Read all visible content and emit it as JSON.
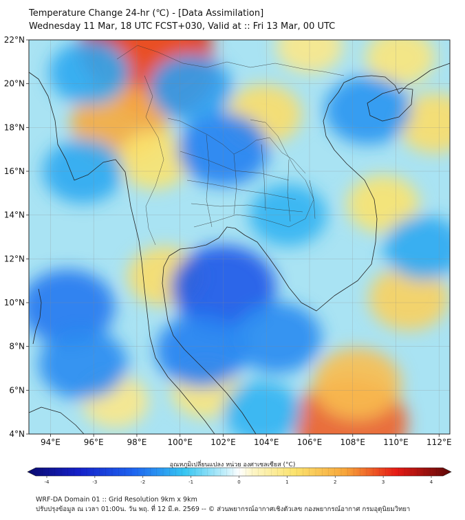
{
  "header": {
    "title": "Temperature Change 24-hr (℃) - [Data Assimilation]",
    "subtitle": "Wednesday 11 Mar, 18 UTC FCST+030, Valid at :: Fri 13 Mar, 00 UTC"
  },
  "map": {
    "lon_range": [
      93,
      112.5
    ],
    "lat_range": [
      4,
      22
    ],
    "lon_ticks": [
      "94°E",
      "96°E",
      "98°E",
      "100°E",
      "102°E",
      "104°E",
      "106°E",
      "108°E",
      "110°E",
      "112°E"
    ],
    "lat_ticks": [
      "4°N",
      "6°N",
      "8°N",
      "10°N",
      "12°N",
      "14°N",
      "16°N",
      "18°N",
      "20°N",
      "22°N"
    ],
    "gridlines": true
  },
  "colorbar": {
    "title": "อุณหภูมิเปลี่ยนแปลง หน่วย องศาเซลเซียส (°C)",
    "ticks": [
      "-4",
      "-3",
      "-2",
      "-1",
      "0",
      "1",
      "2",
      "3",
      "4"
    ],
    "range": [
      -4,
      4
    ]
  },
  "footer": {
    "line1": "WRF-DA Domain 01 :: Grid Resolution 9km x 9km",
    "line2": "ปรับปรุงข้อมูล ณ เวลา 01:00น. วัน พฤ. ที่ 12 มี.ค. 2569 -- © ส่วนพยากรณ์อากาศเชิงตัวเลข กองพยากรณ์อากาศ กรมอุตุนิยมวิทยา"
  },
  "chart_data": {
    "type": "heatmap",
    "title": "Temperature Change 24-hr (℃) - [Data Assimilation]",
    "xlim": [
      93,
      112.5
    ],
    "ylim": [
      4,
      22
    ],
    "value_range": [
      -4,
      4
    ],
    "features": [
      {
        "lon": 98.4,
        "lat": 21.7,
        "value": 3.2
      },
      {
        "lon": 99.0,
        "lat": 20.6,
        "value": 2.6
      },
      {
        "lon": 97.2,
        "lat": 18.2,
        "value": 1.9
      },
      {
        "lon": 98.8,
        "lat": 16.5,
        "value": 1.0
      },
      {
        "lon": 99.3,
        "lat": 11.2,
        "value": 1.1
      },
      {
        "lon": 103.9,
        "lat": 18.6,
        "value": 1.1
      },
      {
        "lon": 106.0,
        "lat": 21.7,
        "value": 0.8
      },
      {
        "lon": 110.2,
        "lat": 21.2,
        "value": 0.9
      },
      {
        "lon": 107.9,
        "lat": 4.5,
        "value": 2.5
      },
      {
        "lon": 108.2,
        "lat": 6.3,
        "value": 1.6
      },
      {
        "lon": 110.6,
        "lat": 10.2,
        "value": 1.3
      },
      {
        "lon": 111.8,
        "lat": 18.2,
        "value": 1.1
      },
      {
        "lon": 109.4,
        "lat": 14.5,
        "value": 1.0
      },
      {
        "lon": 97.0,
        "lat": 5.5,
        "value": 0.8
      },
      {
        "lon": 101.2,
        "lat": 6.0,
        "value": 0.9
      },
      {
        "lon": 102.0,
        "lat": 10.7,
        "value": -2.2
      },
      {
        "lon": 94.8,
        "lat": 9.8,
        "value": -1.8
      },
      {
        "lon": 102.0,
        "lat": 17.0,
        "value": -1.7
      },
      {
        "lon": 100.5,
        "lat": 19.8,
        "value": -1.4
      },
      {
        "lon": 95.8,
        "lat": 20.5,
        "value": -1.3
      },
      {
        "lon": 95.5,
        "lat": 7.2,
        "value": -1.6
      },
      {
        "lon": 101.0,
        "lat": 7.8,
        "value": -1.7
      },
      {
        "lon": 104.5,
        "lat": 8.4,
        "value": -1.6
      },
      {
        "lon": 108.7,
        "lat": 18.8,
        "value": -1.5
      },
      {
        "lon": 105.0,
        "lat": 14.0,
        "value": -1.2
      },
      {
        "lon": 111.3,
        "lat": 12.5,
        "value": -1.3
      },
      {
        "lon": 103.8,
        "lat": 5.0,
        "value": -1.2
      },
      {
        "lon": 95.5,
        "lat": 16.0,
        "value": -1.3
      }
    ]
  }
}
